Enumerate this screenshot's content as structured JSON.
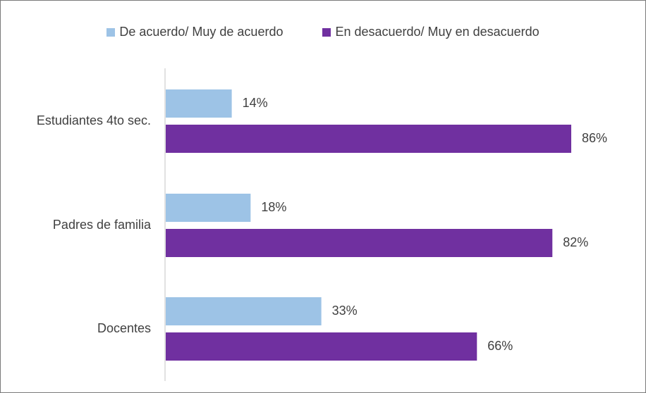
{
  "chart_data": {
    "type": "bar",
    "orientation": "horizontal",
    "categories": [
      "Estudiantes 4to sec.",
      "Padres de familia",
      "Docentes"
    ],
    "series": [
      {
        "name": "De acuerdo/ Muy de acuerdo",
        "values": [
          14,
          18,
          33
        ],
        "labels": [
          "14%",
          "18%",
          "33%"
        ],
        "color": "#9DC3E6"
      },
      {
        "name": "En desacuerdo/ Muy en desacuerdo",
        "values": [
          86,
          82,
          66
        ],
        "labels": [
          "86%",
          "82%",
          "66%"
        ],
        "color": "#7030A0"
      }
    ],
    "xlim": [
      0,
      100
    ],
    "unit": "%",
    "legend": "top-center",
    "grid": false
  }
}
